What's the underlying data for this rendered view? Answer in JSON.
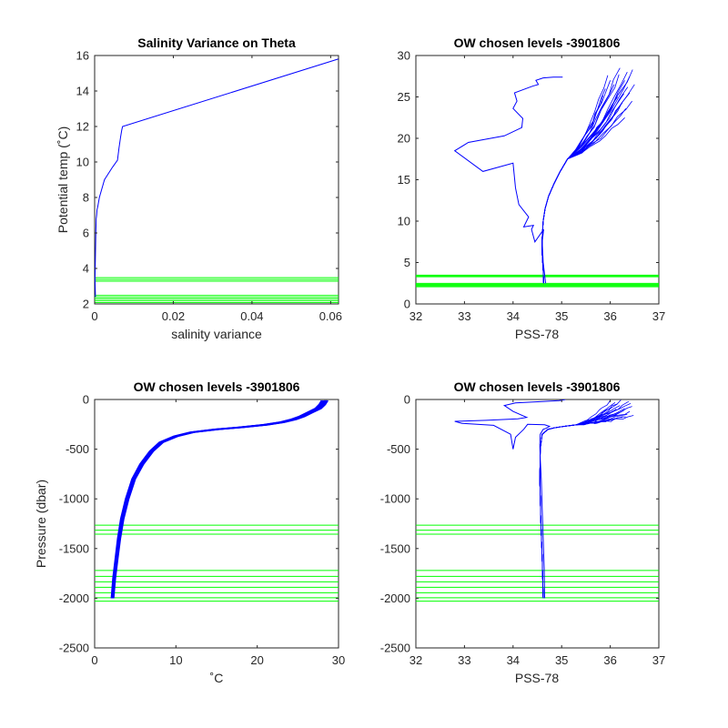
{
  "chart_data": [
    {
      "id": "var",
      "type": "line",
      "title": "Salinity Variance on Theta",
      "xlabel": "salinity variance",
      "ylabel": "Potential temp (˚C)",
      "xlim": [
        0,
        0.062
      ],
      "ylim": [
        2,
        16
      ],
      "xticks": [
        0,
        0.02,
        0.04,
        0.06
      ],
      "xticklabels": [
        "0",
        "0.02",
        "0.04",
        "0.06"
      ],
      "yticks": [
        2,
        4,
        6,
        8,
        10,
        12,
        14,
        16
      ],
      "yticklabels": [
        "2",
        "4",
        "6",
        "8",
        "10",
        "12",
        "14",
        "16"
      ],
      "grid": false,
      "legend": "none",
      "colors": {
        "profile": "#0000ff",
        "chosen_levels": "#00ff00"
      },
      "series": [
        {
          "x": [
            0.0002,
            0.0001,
            0.0002,
            0.0003,
            0.0004,
            0.0005,
            0.0006,
            0.0008,
            0.0012,
            0.0025,
            0.0045,
            0.0058,
            0.0062,
            0.0066,
            0.0069,
            0.0071,
            0.0619
          ],
          "y": [
            2.4,
            3.4,
            4.8,
            6.0,
            6.8,
            7.0,
            7.3,
            7.5,
            8.0,
            9.0,
            9.7,
            10.1,
            10.8,
            11.4,
            11.8,
            12.0,
            15.8
          ]
        }
      ],
      "chosen_levels": [
        2.08,
        2.18,
        2.28,
        2.38,
        2.48,
        3.28,
        3.38,
        3.48
      ]
    },
    {
      "id": "ts",
      "type": "line",
      "title": "OW chosen levels -3901806",
      "xlabel": "PSS-78",
      "ylabel": "",
      "xlim": [
        32,
        37
      ],
      "ylim": [
        0,
        30
      ],
      "xticks": [
        32,
        33,
        34,
        35,
        36,
        37
      ],
      "xticklabels": [
        "32",
        "33",
        "34",
        "35",
        "36",
        "37"
      ],
      "yticks": [
        0,
        5,
        10,
        15,
        20,
        25,
        30
      ],
      "yticklabels": [
        "0",
        "5",
        "10",
        "15",
        "20",
        "25",
        "30"
      ],
      "grid": false,
      "legend": "none",
      "colors": {
        "profile": "#0000ff",
        "chosen_levels": "#00ff00"
      },
      "series": [
        {
          "x": [
            34.67,
            34.62,
            34.6,
            34.63,
            34.45,
            34.38,
            34.42,
            34.22,
            34.32,
            34.12,
            34.05,
            34.0,
            33.38,
            32.8,
            33.08,
            33.82,
            34.18,
            34.2,
            34.0,
            34.08,
            34.03,
            34.4,
            34.52,
            34.47,
            34.62,
            34.83,
            35.02
          ],
          "y": [
            2.5,
            5.0,
            7.5,
            9.0,
            7.5,
            9.0,
            9.5,
            9.3,
            10.5,
            12.0,
            14.0,
            17.0,
            16.0,
            18.5,
            19.5,
            20.3,
            21.3,
            22.4,
            23.6,
            24.5,
            25.5,
            26.3,
            26.5,
            27.0,
            27.3,
            27.4,
            27.4
          ]
        }
      ],
      "bundle": {
        "deep": {
          "x": [
            34.63,
            34.62,
            34.6,
            34.6,
            34.62,
            34.66,
            34.73,
            34.84,
            34.97,
            35.12
          ],
          "y": [
            2.5,
            4.0,
            6.0,
            8.0,
            10.0,
            11.5,
            13.0,
            14.5,
            16.0,
            17.5
          ]
        },
        "spread_start": [
          35.12,
          17.5
        ],
        "ends": [
          [
            36.05,
            24.0
          ],
          [
            36.15,
            25.0
          ],
          [
            36.25,
            26.0
          ],
          [
            36.3,
            27.0
          ],
          [
            36.35,
            28.0
          ],
          [
            36.4,
            27.5
          ],
          [
            36.2,
            28.5
          ],
          [
            36.0,
            27.0
          ],
          [
            35.9,
            26.0
          ],
          [
            36.1,
            23.0
          ],
          [
            36.3,
            22.5
          ],
          [
            36.45,
            24.5
          ],
          [
            36.5,
            26.5
          ],
          [
            36.4,
            25.5
          ],
          [
            36.25,
            24.3
          ],
          [
            35.85,
            25.2
          ],
          [
            36.18,
            27.7
          ],
          [
            36.32,
            23.6
          ],
          [
            36.08,
            26.5
          ],
          [
            36.46,
            28.3
          ],
          [
            36.02,
            22.2
          ],
          [
            36.36,
            26.2
          ],
          [
            35.95,
            27.6
          ],
          [
            36.28,
            25.4
          ]
        ]
      },
      "chosen_levels": [
        2.08,
        2.18,
        2.28,
        2.38,
        2.48,
        3.28,
        3.38,
        3.48
      ]
    },
    {
      "id": "tp",
      "type": "line",
      "title": "OW chosen levels -3901806",
      "xlabel": "˚C",
      "ylabel": "Pressure (dbar)",
      "xlim": [
        0,
        30
      ],
      "ylim": [
        -2500,
        0
      ],
      "xticks": [
        0,
        10,
        20,
        30
      ],
      "xticklabels": [
        "0",
        "10",
        "20",
        "30"
      ],
      "yticks": [
        -2500,
        -2000,
        -1500,
        -1000,
        -500,
        0
      ],
      "yticklabels": [
        "-2500",
        "-2000",
        "-1500",
        "-1000",
        "-500",
        "0"
      ],
      "grid": false,
      "legend": "none",
      "colors": {
        "profile": "#0000ff",
        "chosen_levels": "#00ff00"
      },
      "series": [
        {
          "x": [
            2.2,
            2.4,
            2.7,
            3.0,
            3.4,
            4.0,
            4.8,
            5.8,
            7.0,
            8.2,
            10.0,
            12.0,
            15.0,
            18.0,
            21.0,
            23.0,
            24.5,
            25.5,
            26.5,
            27.5,
            28.0,
            28.3
          ],
          "y": [
            -2000,
            -1800,
            -1600,
            -1400,
            -1200,
            -1000,
            -800,
            -650,
            -520,
            -430,
            -370,
            -330,
            -300,
            -280,
            -255,
            -230,
            -200,
            -170,
            -130,
            -90,
            -50,
            -10
          ]
        }
      ],
      "chosen_levels": [
        -1265,
        -1315,
        -1355,
        -1720,
        -1780,
        -1835,
        -1890,
        -1945,
        -1995,
        -2030
      ]
    },
    {
      "id": "sp",
      "type": "line",
      "title": "OW chosen levels -3901806",
      "xlabel": "PSS-78",
      "ylabel": "",
      "xlim": [
        32,
        37
      ],
      "ylim": [
        -2500,
        0
      ],
      "xticks": [
        32,
        33,
        34,
        35,
        36,
        37
      ],
      "xticklabels": [
        "32",
        "33",
        "34",
        "35",
        "36",
        "37"
      ],
      "yticks": [
        -2500,
        -2000,
        -1500,
        -1000,
        -500,
        0
      ],
      "yticklabels": [
        "-2500",
        "-2000",
        "-1500",
        "-1000",
        "-500",
        "0"
      ],
      "grid": false,
      "legend": "none",
      "colors": {
        "profile": "#0000ff",
        "chosen_levels": "#00ff00"
      },
      "series": [
        {
          "x": [
            34.65,
            34.64,
            34.62,
            34.6,
            34.58,
            34.56,
            34.55,
            34.56,
            34.62,
            34.68,
            34.75,
            34.65,
            34.3,
            34.22,
            34.05,
            34.0,
            33.95,
            33.6,
            32.95,
            32.8,
            33.45,
            34.1,
            34.28,
            34.0,
            33.82,
            34.05,
            34.6,
            34.95,
            35.08
          ],
          "y": [
            -2000,
            -1700,
            -1400,
            -1100,
            -800,
            -600,
            -450,
            -350,
            -300,
            -290,
            -270,
            -255,
            -250,
            -300,
            -380,
            -500,
            -350,
            -260,
            -240,
            -220,
            -210,
            -195,
            -180,
            -120,
            -60,
            -35,
            -20,
            -12,
            0
          ]
        }
      ],
      "bundle": {
        "deep": {
          "x": [
            34.62,
            34.6,
            34.57,
            34.55,
            34.56,
            34.6,
            34.72,
            34.85,
            35.05,
            35.3
          ],
          "y": [
            -2000,
            -1600,
            -1200,
            -800,
            -500,
            -350,
            -300,
            -285,
            -270,
            -255
          ]
        },
        "spread_start": [
          35.3,
          -255
        ],
        "ends": [
          [
            36.0,
            -10
          ],
          [
            36.1,
            -30
          ],
          [
            36.2,
            -60
          ],
          [
            36.3,
            -90
          ],
          [
            36.4,
            -120
          ],
          [
            36.35,
            -150
          ],
          [
            36.25,
            -180
          ],
          [
            36.15,
            -45
          ],
          [
            36.45,
            -70
          ],
          [
            36.05,
            -200
          ],
          [
            36.38,
            -20
          ],
          [
            36.28,
            -110
          ],
          [
            35.95,
            -140
          ],
          [
            36.48,
            -160
          ],
          [
            36.22,
            -5
          ],
          [
            36.12,
            -95
          ],
          [
            36.42,
            -40
          ],
          [
            36.32,
            -175
          ],
          [
            36.02,
            -80
          ],
          [
            36.18,
            -125
          ]
        ]
      },
      "chosen_levels": [
        -1265,
        -1315,
        -1355,
        -1720,
        -1780,
        -1835,
        -1890,
        -1945,
        -1995,
        -2030
      ]
    }
  ]
}
